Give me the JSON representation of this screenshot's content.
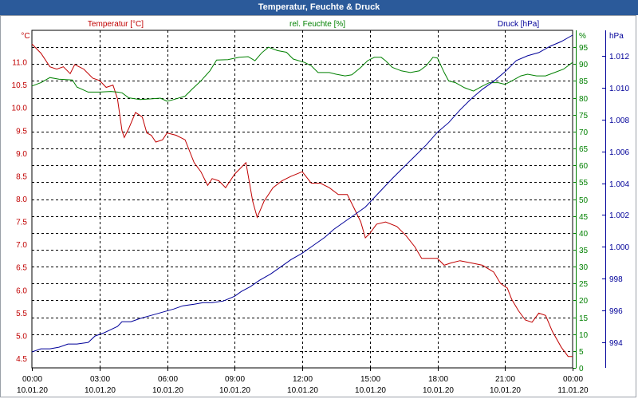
{
  "window": {
    "title": "Temperatur, Feuchte & Druck"
  },
  "colors": {
    "temperature": "#c00000",
    "humidity": "#008000",
    "pressure": "#000099",
    "grid": "#000000",
    "axis_text": "#000000"
  },
  "chart_data": {
    "type": "line",
    "title": "Temperatur, Feuchte & Druck",
    "x_ticks": [
      {
        "time": "00:00",
        "date": "10.01.20"
      },
      {
        "time": "03:00",
        "date": "10.01.20"
      },
      {
        "time": "06:00",
        "date": "10.01.20"
      },
      {
        "time": "09:00",
        "date": "10.01.20"
      },
      {
        "time": "12:00",
        "date": "10.01.20"
      },
      {
        "time": "15:00",
        "date": "10.01.20"
      },
      {
        "time": "18:00",
        "date": "10.01.20"
      },
      {
        "time": "21:00",
        "date": "10.01.20"
      },
      {
        "time": "00:00",
        "date": "11.01.20"
      }
    ],
    "x_range_hours": [
      0,
      24
    ],
    "axes": {
      "temperature": {
        "label": "Temperatur [°C]",
        "unit": "°C",
        "range": [
          4.3,
          11.7
        ],
        "ticks": [
          "4.5",
          "5.0",
          "5.5",
          "6.0",
          "6.5",
          "7.0",
          "7.5",
          "8.0",
          "8.5",
          "9.0",
          "9.5",
          "10.0",
          "10.5",
          "11.0"
        ]
      },
      "humidity": {
        "label": "rel. Feuchte [%]",
        "unit": "%",
        "range": [
          0,
          100
        ],
        "ticks": [
          "0",
          "5",
          "10",
          "15",
          "20",
          "25",
          "30",
          "35",
          "40",
          "45",
          "50",
          "55",
          "60",
          "65",
          "70",
          "75",
          "80",
          "85",
          "90",
          "95"
        ]
      },
      "pressure": {
        "label": "Druck [hPa]",
        "unit": "hPa",
        "range": [
          992.4,
          1013.6
        ],
        "ticks": [
          "994",
          "996",
          "998",
          "1.000",
          "1.002",
          "1.004",
          "1.006",
          "1.008",
          "1.010",
          "1.012"
        ]
      }
    },
    "series": [
      {
        "name": "Temperatur",
        "axis": "temperature",
        "points": [
          [
            0,
            11.4
          ],
          [
            0.4,
            11.2
          ],
          [
            0.8,
            10.9
          ],
          [
            1.1,
            10.85
          ],
          [
            1.4,
            10.9
          ],
          [
            1.7,
            10.75
          ],
          [
            1.9,
            10.95
          ],
          [
            2.3,
            10.85
          ],
          [
            2.7,
            10.65
          ],
          [
            3.0,
            10.6
          ],
          [
            3.3,
            10.45
          ],
          [
            3.6,
            10.5
          ],
          [
            3.8,
            10.2
          ],
          [
            4.0,
            9.5
          ],
          [
            4.1,
            9.35
          ],
          [
            4.3,
            9.55
          ],
          [
            4.6,
            9.9
          ],
          [
            4.9,
            9.8
          ],
          [
            5.1,
            9.45
          ],
          [
            5.3,
            9.4
          ],
          [
            5.5,
            9.25
          ],
          [
            5.8,
            9.3
          ],
          [
            6.0,
            9.45
          ],
          [
            6.4,
            9.4
          ],
          [
            6.8,
            9.3
          ],
          [
            7.2,
            8.8
          ],
          [
            7.5,
            8.6
          ],
          [
            7.8,
            8.3
          ],
          [
            8.0,
            8.45
          ],
          [
            8.3,
            8.4
          ],
          [
            8.6,
            8.25
          ],
          [
            9.0,
            8.55
          ],
          [
            9.5,
            8.8
          ],
          [
            9.8,
            7.95
          ],
          [
            10.0,
            7.6
          ],
          [
            10.3,
            7.95
          ],
          [
            10.7,
            8.25
          ],
          [
            11.1,
            8.4
          ],
          [
            11.5,
            8.5
          ],
          [
            12.0,
            8.6
          ],
          [
            12.4,
            8.35
          ],
          [
            12.8,
            8.35
          ],
          [
            13.2,
            8.25
          ],
          [
            13.6,
            8.1
          ],
          [
            14.0,
            8.1
          ],
          [
            14.3,
            7.8
          ],
          [
            14.6,
            7.5
          ],
          [
            14.8,
            7.15
          ],
          [
            15.0,
            7.25
          ],
          [
            15.3,
            7.45
          ],
          [
            15.7,
            7.5
          ],
          [
            16.2,
            7.4
          ],
          [
            16.6,
            7.2
          ],
          [
            17.0,
            6.95
          ],
          [
            17.3,
            6.7
          ],
          [
            17.6,
            6.7
          ],
          [
            18.0,
            6.7
          ],
          [
            18.3,
            6.55
          ],
          [
            18.6,
            6.6
          ],
          [
            19.0,
            6.65
          ],
          [
            19.5,
            6.6
          ],
          [
            20.0,
            6.55
          ],
          [
            20.5,
            6.4
          ],
          [
            20.8,
            6.15
          ],
          [
            21.1,
            6.05
          ],
          [
            21.3,
            5.8
          ],
          [
            21.6,
            5.55
          ],
          [
            21.9,
            5.35
          ],
          [
            22.2,
            5.3
          ],
          [
            22.5,
            5.5
          ],
          [
            22.8,
            5.45
          ],
          [
            23.1,
            5.1
          ],
          [
            23.5,
            4.75
          ],
          [
            23.8,
            4.55
          ],
          [
            24.0,
            4.55
          ]
        ]
      },
      {
        "name": "rel. Feuchte",
        "axis": "humidity",
        "points": [
          [
            0,
            83.5
          ],
          [
            0.4,
            84.5
          ],
          [
            0.8,
            86
          ],
          [
            1.2,
            85.5
          ],
          [
            1.8,
            85.3
          ],
          [
            2.0,
            83.2
          ],
          [
            2.5,
            81.7
          ],
          [
            3.0,
            81.7
          ],
          [
            3.5,
            81.9
          ],
          [
            3.8,
            81.7
          ],
          [
            4.0,
            81.5
          ],
          [
            4.3,
            80
          ],
          [
            4.8,
            79.5
          ],
          [
            5.3,
            79.7
          ],
          [
            5.7,
            79.9
          ],
          [
            6.0,
            79
          ],
          [
            6.3,
            79.5
          ],
          [
            6.8,
            80.5
          ],
          [
            7.1,
            82.5
          ],
          [
            7.5,
            85
          ],
          [
            7.9,
            88
          ],
          [
            8.2,
            91.2
          ],
          [
            8.7,
            91.3
          ],
          [
            9.2,
            92
          ],
          [
            9.6,
            92.2
          ],
          [
            9.9,
            91
          ],
          [
            10.2,
            93.3
          ],
          [
            10.5,
            95
          ],
          [
            10.9,
            94
          ],
          [
            11.3,
            93.5
          ],
          [
            11.6,
            91.5
          ],
          [
            12.1,
            90.5
          ],
          [
            12.4,
            89.5
          ],
          [
            12.7,
            87.5
          ],
          [
            13.2,
            87.5
          ],
          [
            13.5,
            87
          ],
          [
            13.9,
            86.5
          ],
          [
            14.2,
            86.8
          ],
          [
            14.6,
            89
          ],
          [
            14.9,
            91
          ],
          [
            15.2,
            92
          ],
          [
            15.5,
            92
          ],
          [
            15.7,
            91
          ],
          [
            16.0,
            89
          ],
          [
            16.4,
            88
          ],
          [
            16.8,
            87.5
          ],
          [
            17.2,
            88
          ],
          [
            17.5,
            89.5
          ],
          [
            17.8,
            92
          ],
          [
            18.0,
            91.8
          ],
          [
            18.3,
            87.5
          ],
          [
            18.5,
            85
          ],
          [
            18.8,
            84.5
          ],
          [
            19.2,
            83
          ],
          [
            19.6,
            82
          ],
          [
            20.0,
            83.5
          ],
          [
            20.3,
            84.5
          ],
          [
            20.7,
            84.5
          ],
          [
            21.0,
            84
          ],
          [
            21.3,
            85
          ],
          [
            21.7,
            86.5
          ],
          [
            22.0,
            87
          ],
          [
            22.4,
            86.5
          ],
          [
            22.8,
            86.5
          ],
          [
            23.2,
            87.5
          ],
          [
            23.6,
            88.5
          ],
          [
            24.0,
            90.5
          ]
        ]
      },
      {
        "name": "Druck",
        "axis": "pressure",
        "points": [
          [
            0,
            993.4
          ],
          [
            0.4,
            993.6
          ],
          [
            0.8,
            993.6
          ],
          [
            1.2,
            993.7
          ],
          [
            1.6,
            993.9
          ],
          [
            2.0,
            993.9
          ],
          [
            2.5,
            994.0
          ],
          [
            2.8,
            994.4
          ],
          [
            3.2,
            994.6
          ],
          [
            3.5,
            994.8
          ],
          [
            3.8,
            995.0
          ],
          [
            4.0,
            995.3
          ],
          [
            4.4,
            995.3
          ],
          [
            4.8,
            995.5
          ],
          [
            5.3,
            995.7
          ],
          [
            5.8,
            995.9
          ],
          [
            6.3,
            996.1
          ],
          [
            6.7,
            996.3
          ],
          [
            7.2,
            996.4
          ],
          [
            7.6,
            996.5
          ],
          [
            8.0,
            996.5
          ],
          [
            8.5,
            996.6
          ],
          [
            9.0,
            996.9
          ],
          [
            9.3,
            997.2
          ],
          [
            9.7,
            997.5
          ],
          [
            10.1,
            997.9
          ],
          [
            10.6,
            998.3
          ],
          [
            11.0,
            998.7
          ],
          [
            11.5,
            999.2
          ],
          [
            12.0,
            999.6
          ],
          [
            12.5,
            1000.1
          ],
          [
            13.0,
            1000.6
          ],
          [
            13.4,
            1001.1
          ],
          [
            13.8,
            1001.5
          ],
          [
            14.3,
            1002.0
          ],
          [
            14.8,
            1002.5
          ],
          [
            15.2,
            1003.1
          ],
          [
            15.6,
            1003.7
          ],
          [
            16.0,
            1004.3
          ],
          [
            16.5,
            1005.0
          ],
          [
            17.0,
            1005.7
          ],
          [
            17.5,
            1006.4
          ],
          [
            18.0,
            1007.2
          ],
          [
            18.5,
            1007.8
          ],
          [
            19.0,
            1008.6
          ],
          [
            19.5,
            1009.3
          ],
          [
            20.0,
            1009.9
          ],
          [
            20.5,
            1010.4
          ],
          [
            21.0,
            1011.0
          ],
          [
            21.5,
            1011.7
          ],
          [
            22.0,
            1012.0
          ],
          [
            22.5,
            1012.2
          ],
          [
            23.0,
            1012.6
          ],
          [
            23.5,
            1012.9
          ],
          [
            24.0,
            1013.3
          ]
        ]
      }
    ]
  }
}
